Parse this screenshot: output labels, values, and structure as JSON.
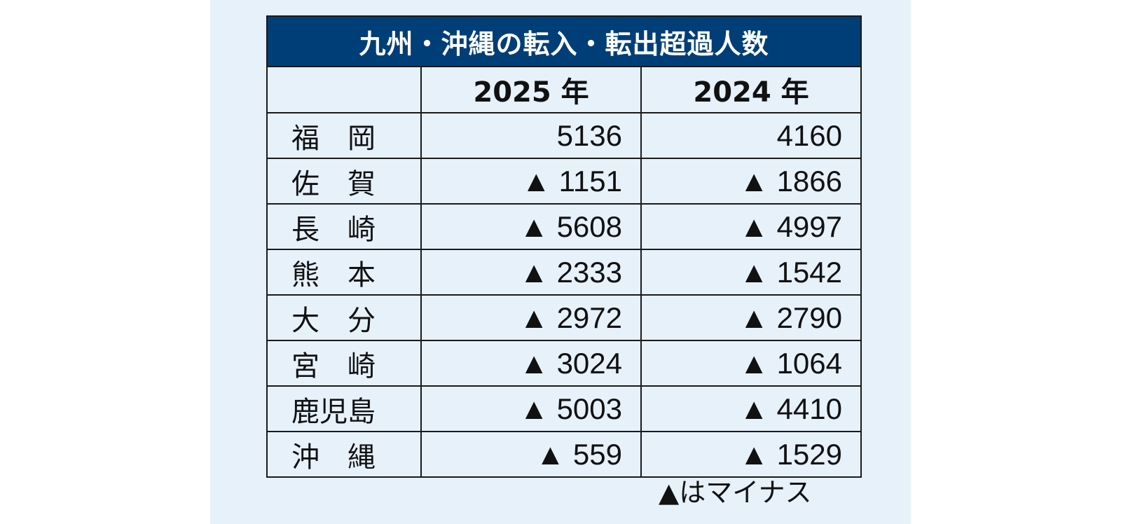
{
  "chart_data": {
    "type": "table",
    "title": "九州・沖縄の転入・転出超過人数",
    "columns": [
      "",
      "2025 年",
      "2024 年"
    ],
    "rows": [
      {
        "name": "福　岡",
        "y2025": "5136",
        "y2024": "4160"
      },
      {
        "name": "佐　賀",
        "y2025": "▲ 1151",
        "y2024": "▲ 1866"
      },
      {
        "name": "長　崎",
        "y2025": "▲ 5608",
        "y2024": "▲ 4997"
      },
      {
        "name": "熊　本",
        "y2025": "▲ 2333",
        "y2024": "▲ 1542"
      },
      {
        "name": "大　分",
        "y2025": "▲ 2972",
        "y2024": "▲ 2790"
      },
      {
        "name": "宮　崎",
        "y2025": "▲ 3024",
        "y2024": "▲ 1064"
      },
      {
        "name": "鹿児島",
        "y2025": "▲ 5003",
        "y2024": "▲ 4410"
      },
      {
        "name": "沖　縄",
        "y2025": "▲ 559",
        "y2024": "▲ 1529"
      }
    ],
    "values_2025": [
      5136,
      -1151,
      -5608,
      -2333,
      -2972,
      -3024,
      -5003,
      -559
    ],
    "values_2024": [
      4160,
      -1866,
      -4997,
      -1542,
      -2790,
      -1064,
      -4410,
      -1529
    ],
    "note": "▲はマイナス"
  },
  "colors": {
    "header_bg": "#003e78",
    "panel_bg": "#e6f1fa"
  }
}
